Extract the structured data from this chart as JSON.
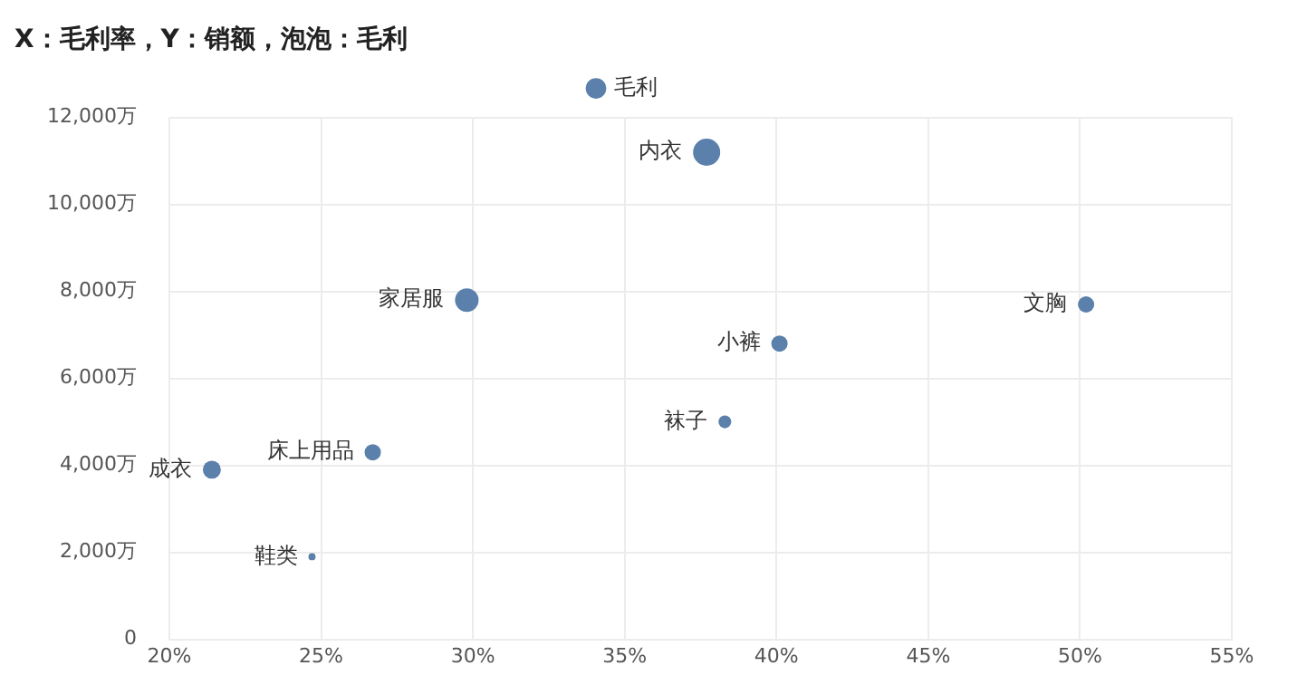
{
  "chart_data": {
    "type": "bubble",
    "title": "X：毛利率，Y：销额，泡泡：毛利",
    "series": [
      {
        "name": "毛利",
        "color": "#5a80ab",
        "x": [
          37.7,
          29.8,
          50.2,
          40.1,
          38.3,
          26.7,
          21.4,
          24.7
        ],
        "values": [
          11200,
          7800,
          7700,
          6800,
          5000,
          4300,
          3900,
          1900
        ],
        "sizes": [
          1,
          0.75,
          0.36,
          0.36,
          0.22,
          0.36,
          0.44,
          0.07
        ]
      }
    ],
    "annotations": [
      {
        "text": "内衣",
        "x": 37.7,
        "y": 11200
      },
      {
        "text": "家居服",
        "x": 29.8,
        "y": 7800
      },
      {
        "text": "文胸",
        "x": 50.2,
        "y": 7700
      },
      {
        "text": "小裤",
        "x": 40.1,
        "y": 6800
      },
      {
        "text": "袜子",
        "x": 38.3,
        "y": 5000
      },
      {
        "text": "床上用品",
        "x": 26.7,
        "y": 4300
      },
      {
        "text": "成衣",
        "x": 21.4,
        "y": 3900
      },
      {
        "text": "鞋类",
        "x": 24.7,
        "y": 1900
      }
    ],
    "xlim": [
      20,
      55
    ],
    "xticks": [
      {
        "value": 20,
        "label": "20%"
      },
      {
        "value": 25,
        "label": "25%"
      },
      {
        "value": 30,
        "label": "30%"
      },
      {
        "value": 35,
        "label": "35%"
      },
      {
        "value": 40,
        "label": "40%"
      },
      {
        "value": 45,
        "label": "45%"
      },
      {
        "value": 50,
        "label": "50%"
      },
      {
        "value": 55,
        "label": "55%"
      }
    ],
    "ylim": [
      0,
      12000
    ],
    "yticks": [
      0,
      {
        "value": 2000,
        "label": "2,000万"
      },
      {
        "value": 4000,
        "label": "4,000万"
      },
      {
        "value": 6000,
        "label": "6,000万"
      },
      {
        "value": 8000,
        "label": "8,000万"
      },
      {
        "value": 10000,
        "label": "10,000万"
      },
      {
        "value": 12000,
        "label": "12,000万"
      }
    ],
    "grid": true,
    "legend": "top"
  }
}
